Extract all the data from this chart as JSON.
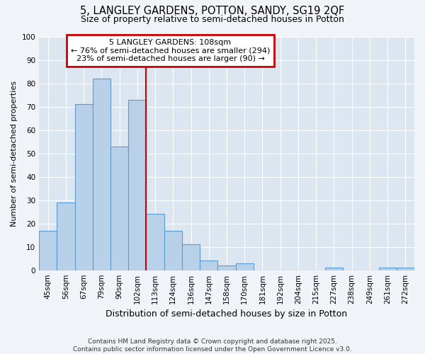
{
  "title1": "5, LANGLEY GARDENS, POTTON, SANDY, SG19 2QF",
  "title2": "Size of property relative to semi-detached houses in Potton",
  "xlabel": "Distribution of semi-detached houses by size in Potton",
  "ylabel": "Number of semi-detached properties",
  "categories": [
    "45sqm",
    "56sqm",
    "67sqm",
    "79sqm",
    "90sqm",
    "102sqm",
    "113sqm",
    "124sqm",
    "136sqm",
    "147sqm",
    "158sqm",
    "170sqm",
    "181sqm",
    "192sqm",
    "204sqm",
    "215sqm",
    "227sqm",
    "238sqm",
    "249sqm",
    "261sqm",
    "272sqm"
  ],
  "values": [
    17,
    29,
    71,
    82,
    53,
    73,
    24,
    17,
    11,
    4,
    2,
    3,
    0,
    0,
    0,
    0,
    1,
    0,
    0,
    1,
    1
  ],
  "bar_color": "#b8d0e8",
  "bar_edge_color": "#5b9bd5",
  "red_line_color": "#cc0000",
  "annotation_line1": "5 LANGLEY GARDENS: 108sqm",
  "annotation_line2": "← 76% of semi-detached houses are smaller (294)",
  "annotation_line3": "23% of semi-detached houses are larger (90) →",
  "annotation_box_color": "#ffffff",
  "annotation_box_edge": "#cc0000",
  "footer": "Contains HM Land Registry data © Crown copyright and database right 2025.\nContains public sector information licensed under the Open Government Licence v3.0.",
  "ylim": [
    0,
    100
  ],
  "yticks": [
    0,
    10,
    20,
    30,
    40,
    50,
    60,
    70,
    80,
    90,
    100
  ],
  "plot_bg_color": "#dce6f1",
  "fig_bg_color": "#f0f4f9",
  "grid_color": "#ffffff",
  "title1_fontsize": 10.5,
  "title2_fontsize": 9,
  "xlabel_fontsize": 9,
  "ylabel_fontsize": 8,
  "tick_fontsize": 7.5,
  "footer_fontsize": 6.5,
  "ann_fontsize": 8
}
